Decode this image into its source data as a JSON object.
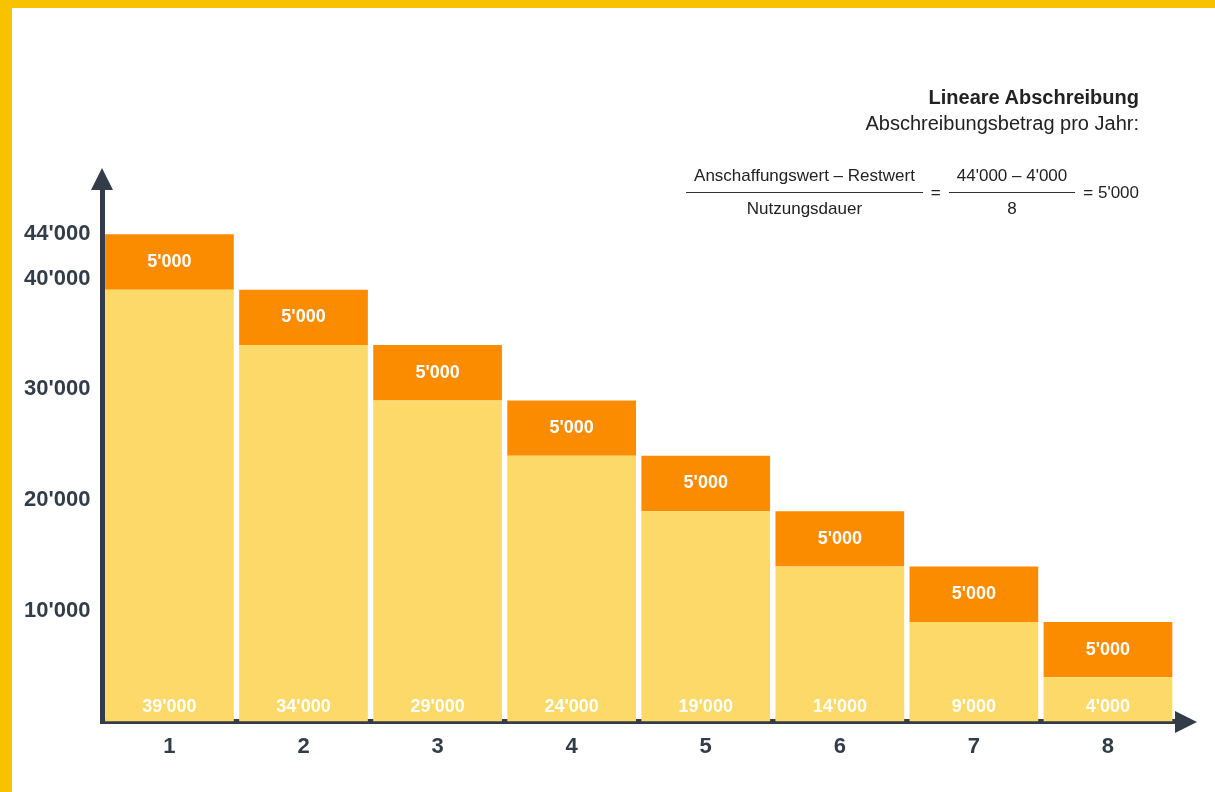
{
  "chart_data": {
    "type": "bar",
    "stacked": true,
    "title": "Lineare Abschreibung",
    "subtitle": "Abschreibungsbetrag pro Jahr:",
    "annotations": [
      "Anschaffungswert – Restwert",
      "Nutzungsdauer",
      "=",
      "44'000 – 4'000",
      "8",
      "= 5'000"
    ],
    "categories": [
      "1",
      "2",
      "3",
      "4",
      "5",
      "6",
      "7",
      "8"
    ],
    "series": [
      {
        "color": "#fdd96a",
        "values": [
          39000,
          34000,
          29000,
          24000,
          19000,
          14000,
          9000,
          4000
        ],
        "value_labels": [
          "39'000",
          "34'000",
          "29'000",
          "24'000",
          "19'000",
          "14'000",
          "9'000",
          "4'000"
        ]
      },
      {
        "color": "#fb8c00",
        "values": [
          5000,
          5000,
          5000,
          5000,
          5000,
          5000,
          5000,
          5000
        ],
        "value_labels": [
          "5'000",
          "5'000",
          "5'000",
          "5'000",
          "5'000",
          "5'000",
          "5'000",
          "5'000"
        ]
      }
    ],
    "ylim": [
      0,
      48000
    ],
    "yticks": [
      {
        "value": 10000,
        "label": "10'000"
      },
      {
        "value": 20000,
        "label": "20'000"
      },
      {
        "value": 30000,
        "label": "30'000"
      },
      {
        "value": 40000,
        "label": "40'000"
      },
      {
        "value": 44000,
        "label": "44'000"
      }
    ],
    "grid": false,
    "legend": false
  }
}
